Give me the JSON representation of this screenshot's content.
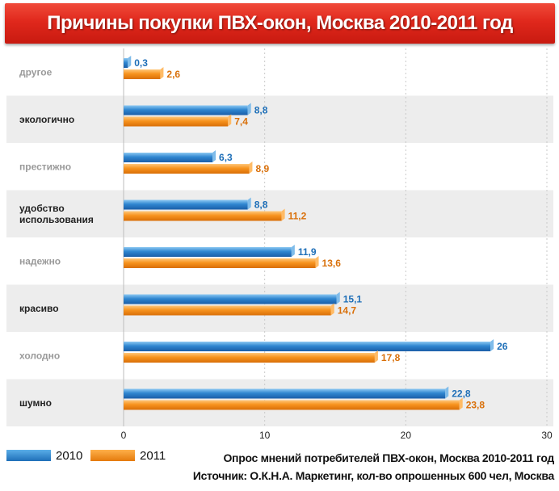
{
  "chart_data": {
    "type": "bar",
    "orientation": "horizontal",
    "title": "Причины покупки ПВХ-окон, Москва 2010-2011 год",
    "categories": [
      "другое",
      "экологично",
      "престижно",
      "удобство использования",
      "надежно",
      "красиво",
      "холодно",
      "шумно"
    ],
    "category_lines": [
      [
        "другое"
      ],
      [
        "экологично"
      ],
      [
        "престижно"
      ],
      [
        "удобство",
        "использования"
      ],
      [
        "надежно"
      ],
      [
        "красиво"
      ],
      [
        "холодно"
      ],
      [
        "шумно"
      ]
    ],
    "series": [
      {
        "name": "2010",
        "values": [
          0.3,
          8.8,
          6.3,
          8.8,
          11.9,
          15.1,
          26,
          22.8
        ],
        "labels": [
          "0,3",
          "8,8",
          "6,3",
          "8,8",
          "11,9",
          "15,1",
          "26",
          "22,8"
        ]
      },
      {
        "name": "2011",
        "values": [
          2.6,
          7.4,
          8.9,
          11.2,
          13.6,
          14.7,
          17.8,
          23.8
        ],
        "labels": [
          "2,6",
          "7,4",
          "8,9",
          "11,2",
          "13,6",
          "14,7",
          "17,8",
          "23,8"
        ]
      }
    ],
    "xlim": [
      0,
      30
    ],
    "x_ticks": [
      0,
      10,
      20,
      30
    ],
    "grid": true,
    "legend_position": "bottom-left"
  },
  "colors": {
    "series_2010": "#2f86d0",
    "series_2011": "#f7931e",
    "label_2010": "#1e6fb8",
    "label_2011": "#d9700a",
    "band": "#ededed",
    "title_bg": "#e0281c"
  },
  "footer": {
    "line1": "Опрос мнений потребителей ПВХ-окон, Москва 2010-2011 год",
    "line2": "Источник: О.К.Н.А. Маркетинг, кол-во опрошенных 600 чел, Москва"
  }
}
